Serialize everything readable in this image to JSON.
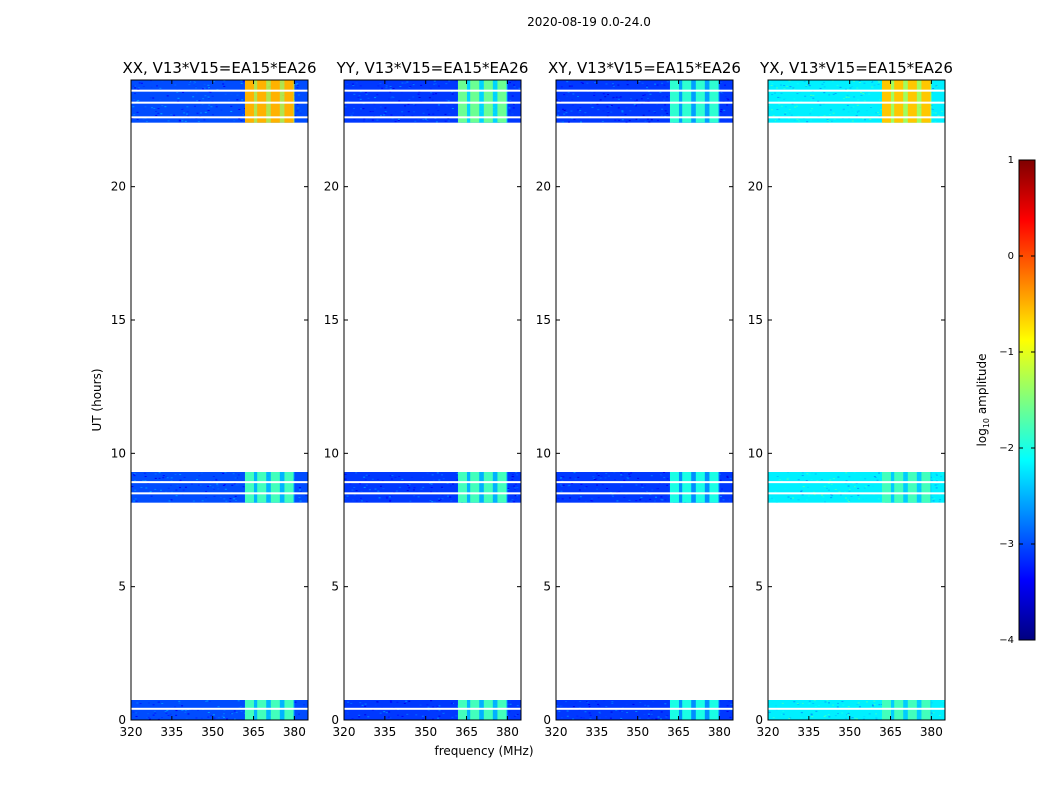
{
  "figure": {
    "suptitle": "2020-08-19 0.0-24.0",
    "xlabel": "frequency (MHz)",
    "ylabel": "UT (hours)"
  },
  "colors": {
    "jet": [
      "#00007f",
      "#0000ff",
      "#007fff",
      "#00ffff",
      "#7fff7f",
      "#ffff00",
      "#ff7f00",
      "#ff0000",
      "#7f0000"
    ],
    "flag": "#ffffff"
  },
  "chart_data": {
    "type": "heatmap",
    "xlim": [
      320,
      385
    ],
    "ylim": [
      0,
      24
    ],
    "xticks": [
      320,
      335,
      350,
      365,
      380
    ],
    "yticks": [
      0,
      5,
      10,
      15,
      20
    ],
    "data_blocks_ut": [
      [
        0.0,
        0.75
      ],
      [
        8.15,
        9.3
      ],
      [
        22.4,
        24.0
      ]
    ],
    "flagged_lines_ut": [
      0.42,
      8.5,
      8.92,
      22.6,
      23.15,
      23.6
    ],
    "rfi_band_mhz": [
      363,
      380
    ],
    "rfi_channels_mhz": [
      363.5,
      368,
      373,
      378
    ],
    "panels": [
      {
        "title": "XX, V13*V15=EA15*EA26",
        "background_log_amp": -3.0,
        "rfi_log_amp_top": -0.5,
        "rfi_log_amp_other": -1.8
      },
      {
        "title": "YY, V13*V15=EA15*EA26",
        "background_log_amp": -3.1,
        "rfi_log_amp_top": -1.6,
        "rfi_log_amp_other": -1.8
      },
      {
        "title": "XY, V13*V15=EA15*EA26",
        "background_log_amp": -3.1,
        "rfi_log_amp_top": -1.9,
        "rfi_log_amp_other": -2.0
      },
      {
        "title": "YX, V13*V15=EA15*EA26",
        "background_log_amp": -2.2,
        "rfi_log_amp_top": -0.6,
        "rfi_log_amp_other": -1.8
      }
    ],
    "colorbar": {
      "label_prefix": "log",
      "label_subscript": "10",
      "label_suffix": " amplitude",
      "range": [
        -4,
        1
      ],
      "ticks": [
        "1",
        "0",
        "−1",
        "−2",
        "−3",
        "−4"
      ]
    }
  }
}
